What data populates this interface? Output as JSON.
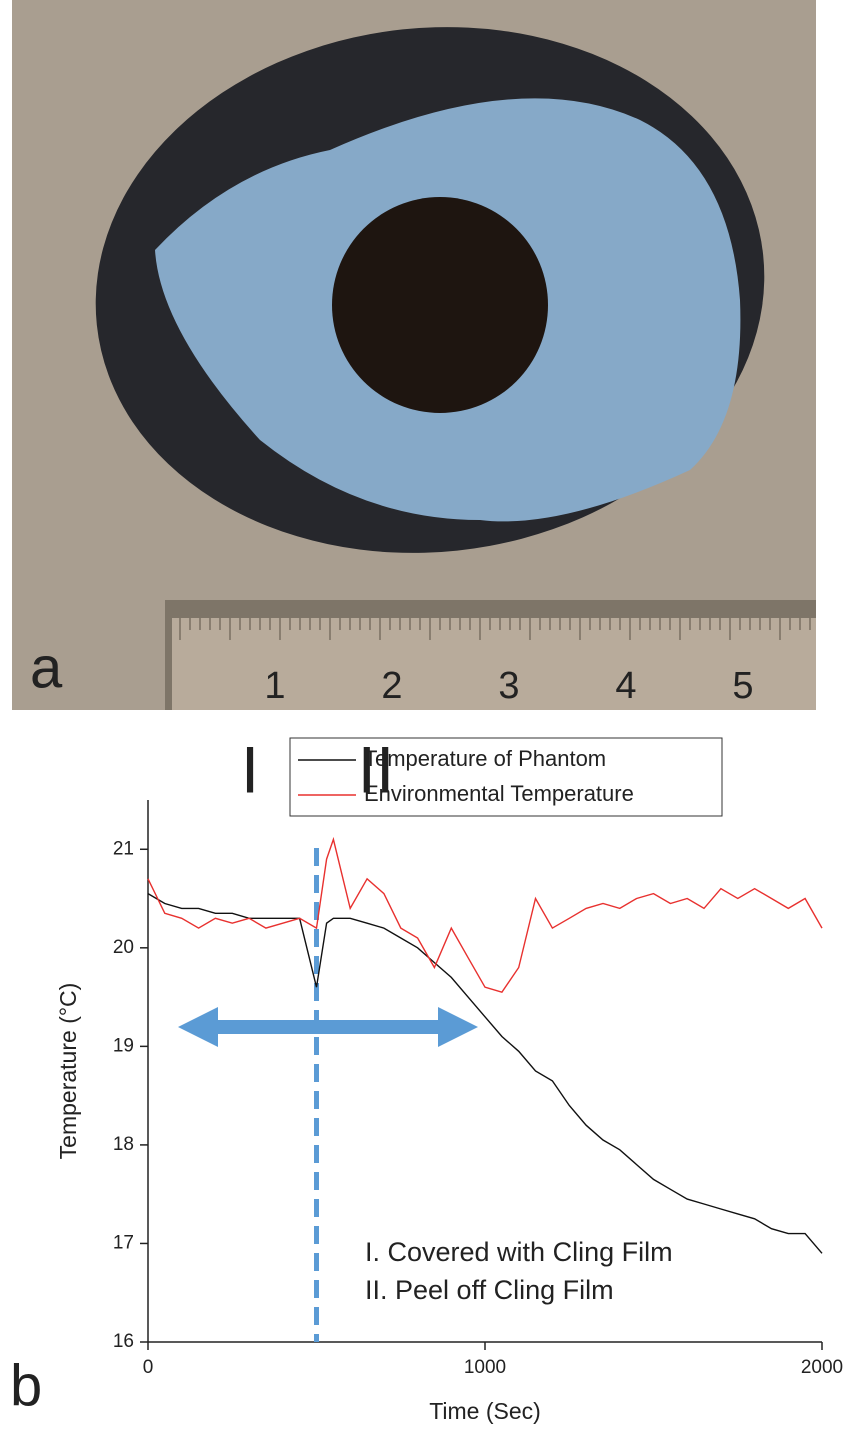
{
  "photo": {
    "panel_label": "a",
    "ruler_labels": [
      "1",
      "2",
      "3",
      "4",
      "5"
    ]
  },
  "chart_data": {
    "type": "line",
    "panel_label": "b",
    "x_label": "Time (Sec)",
    "y_label": "Temperature (°C)",
    "x": [
      0,
      50,
      100,
      150,
      200,
      250,
      300,
      350,
      400,
      450,
      500,
      530,
      550,
      600,
      650,
      700,
      750,
      800,
      850,
      900,
      950,
      1000,
      1050,
      1100,
      1150,
      1200,
      1250,
      1300,
      1350,
      1400,
      1450,
      1500,
      1550,
      1600,
      1650,
      1700,
      1750,
      1800,
      1850,
      1900,
      1950,
      2000
    ],
    "series": [
      {
        "name": "Temperature of Phantom",
        "color": "#111111",
        "values": [
          20.55,
          20.45,
          20.4,
          20.4,
          20.35,
          20.35,
          20.3,
          20.3,
          20.3,
          20.3,
          19.6,
          20.25,
          20.3,
          20.3,
          20.25,
          20.2,
          20.1,
          20.0,
          19.85,
          19.7,
          19.5,
          19.3,
          19.1,
          18.95,
          18.75,
          18.65,
          18.4,
          18.2,
          18.05,
          17.95,
          17.8,
          17.65,
          17.55,
          17.45,
          17.4,
          17.35,
          17.3,
          17.25,
          17.15,
          17.1,
          17.1,
          16.9
        ]
      },
      {
        "name": "Environmental Temperature",
        "color": "#e8312f",
        "values": [
          20.7,
          20.35,
          20.3,
          20.2,
          20.3,
          20.25,
          20.3,
          20.2,
          20.25,
          20.3,
          20.2,
          20.9,
          21.1,
          20.4,
          20.7,
          20.55,
          20.2,
          20.1,
          19.8,
          20.2,
          19.9,
          19.6,
          19.55,
          19.8,
          20.5,
          20.2,
          20.3,
          20.4,
          20.45,
          20.4,
          20.5,
          20.55,
          20.45,
          20.5,
          20.4,
          20.6,
          20.5,
          20.6,
          20.5,
          20.4,
          20.5,
          20.2
        ]
      }
    ],
    "xlim": [
      0,
      2000
    ],
    "ylim": [
      16,
      21.5
    ],
    "xticks": [
      0,
      1000,
      2000
    ],
    "yticks": [
      16,
      17,
      18,
      19,
      20,
      21
    ],
    "marker_x": 500,
    "marker_color": "#5b9bd5",
    "phase_labels": [
      "I",
      "II"
    ],
    "notes": [
      "I.  Covered with Cling Film",
      "II. Peel off Cling Film"
    ]
  }
}
